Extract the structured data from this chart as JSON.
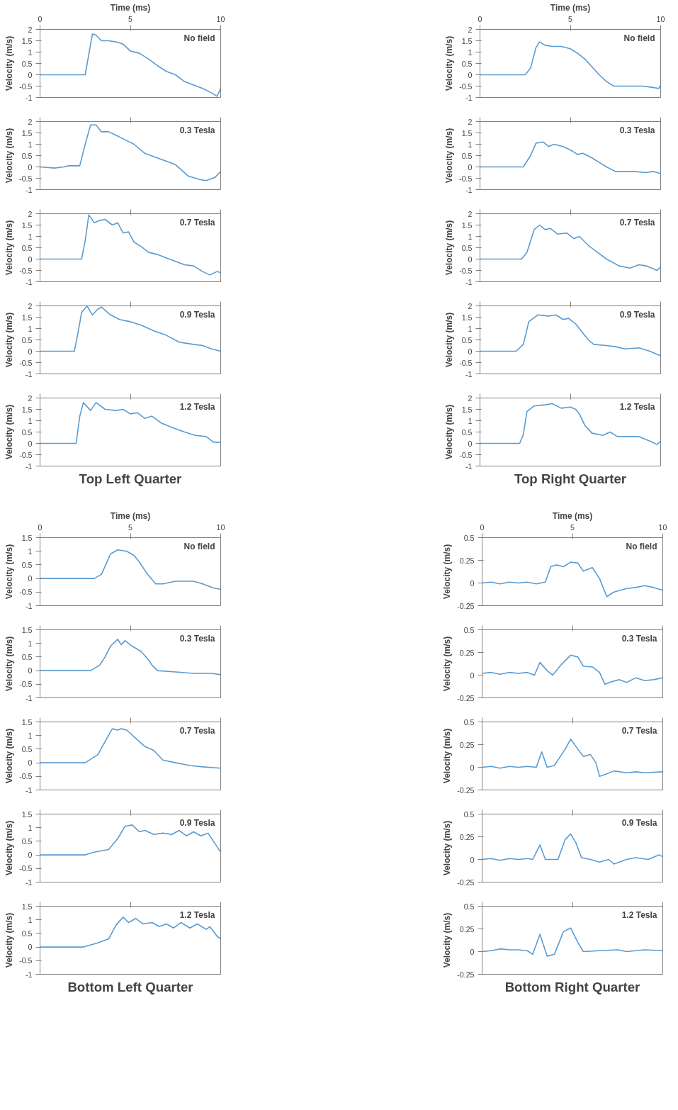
{
  "chart_data": [
    {
      "type": "line",
      "xlabel": "Time (ms)",
      "ylabel": "Velocity (m/s)",
      "annotations": [
        "No field"
      ],
      "xlim": [
        0,
        10
      ],
      "xticks": [
        0,
        5,
        10
      ],
      "ylim": [
        -1,
        2
      ],
      "yticks": [
        -1,
        -0.5,
        0,
        0.5,
        1,
        1.5,
        2
      ],
      "color": "#5a9bd0",
      "x": [
        0,
        2.5,
        2.7,
        2.9,
        3.1,
        3.4,
        3.8,
        4.2,
        4.6,
        5.0,
        5.5,
        6.0,
        6.5,
        7.0,
        7.5,
        8.0,
        8.5,
        9.0,
        9.5,
        9.8,
        10
      ],
      "values": [
        0,
        0,
        0.9,
        1.8,
        1.75,
        1.5,
        1.5,
        1.45,
        1.35,
        1.05,
        0.95,
        0.7,
        0.4,
        0.15,
        0,
        -0.3,
        -0.45,
        -0.6,
        -0.8,
        -0.95,
        -0.6
      ]
    },
    {
      "type": "line",
      "ylabel": "Velocity (m/s)",
      "annotations": [
        "0.3 Tesla"
      ],
      "tick_labels": "y",
      "xlim": [
        0,
        10
      ],
      "xticks": [
        0,
        5,
        10
      ],
      "ylim": [
        -1,
        2
      ],
      "yticks": [
        -1,
        -0.5,
        0,
        0.5,
        1,
        1.5,
        2
      ],
      "color": "#5a9bd0",
      "x": [
        0,
        0.8,
        1.3,
        1.6,
        2.2,
        2.5,
        2.8,
        3.1,
        3.4,
        3.8,
        4.2,
        4.7,
        5.2,
        5.8,
        6.3,
        7.0,
        7.5,
        8.2,
        8.8,
        9.2,
        9.7,
        10
      ],
      "values": [
        0,
        -0.05,
        0,
        0.05,
        0.05,
        1.0,
        1.85,
        1.85,
        1.55,
        1.55,
        1.4,
        1.2,
        1.0,
        0.6,
        0.45,
        0.25,
        0.1,
        -0.4,
        -0.55,
        -0.6,
        -0.45,
        -0.2
      ]
    },
    {
      "type": "line",
      "ylabel": "Velocity (m/s)",
      "annotations": [
        "0.7 Tesla"
      ],
      "tick_labels": "y",
      "xlim": [
        0,
        10
      ],
      "xticks": [
        0,
        5,
        10
      ],
      "ylim": [
        -1,
        2
      ],
      "yticks": [
        -1,
        -0.5,
        0,
        0.5,
        1,
        1.5,
        2
      ],
      "color": "#5a9bd0",
      "x": [
        0,
        2.3,
        2.5,
        2.7,
        3.0,
        3.3,
        3.6,
        4.0,
        4.3,
        4.6,
        4.9,
        5.2,
        5.6,
        6.0,
        6.5,
        7.0,
        7.5,
        8.0,
        8.5,
        9.0,
        9.4,
        9.8,
        10
      ],
      "values": [
        0,
        0,
        0.8,
        1.95,
        1.6,
        1.7,
        1.75,
        1.5,
        1.6,
        1.15,
        1.2,
        0.75,
        0.55,
        0.3,
        0.2,
        0.05,
        -0.1,
        -0.25,
        -0.3,
        -0.55,
        -0.7,
        -0.55,
        -0.6
      ]
    },
    {
      "type": "line",
      "ylabel": "Velocity (m/s)",
      "annotations": [
        "0.9 Tesla"
      ],
      "tick_labels": "y",
      "xlim": [
        0,
        10
      ],
      "xticks": [
        0,
        5,
        10
      ],
      "ylim": [
        -1,
        2
      ],
      "yticks": [
        -1,
        -0.5,
        0,
        0.5,
        1,
        1.5,
        2
      ],
      "color": "#5a9bd0",
      "x": [
        0,
        1.9,
        2.1,
        2.3,
        2.6,
        2.9,
        3.2,
        3.4,
        3.9,
        4.4,
        5.0,
        5.6,
        6.3,
        7.0,
        7.7,
        8.5,
        9.0,
        9.5,
        10
      ],
      "values": [
        0,
        0,
        0.8,
        1.7,
        2.0,
        1.6,
        1.85,
        1.95,
        1.6,
        1.4,
        1.3,
        1.15,
        0.9,
        0.7,
        0.4,
        0.3,
        0.25,
        0.1,
        0
      ]
    },
    {
      "type": "line",
      "ylabel": "Velocity (m/s)",
      "title": "Top Left Quarter",
      "annotations": [
        "1.2 Tesla"
      ],
      "tick_labels": "y",
      "xlim": [
        0,
        10
      ],
      "xticks": [
        0,
        5,
        10
      ],
      "ylim": [
        -1,
        2
      ],
      "yticks": [
        -1,
        -0.5,
        0,
        0.5,
        1,
        1.5,
        2
      ],
      "color": "#5a9bd0",
      "x": [
        0,
        2.0,
        2.2,
        2.4,
        2.8,
        3.1,
        3.6,
        4.2,
        4.6,
        5.0,
        5.4,
        5.8,
        6.2,
        6.7,
        7.3,
        8.0,
        8.6,
        9.2,
        9.6,
        10
      ],
      "values": [
        0,
        0,
        1.2,
        1.8,
        1.45,
        1.8,
        1.5,
        1.45,
        1.5,
        1.3,
        1.35,
        1.1,
        1.2,
        0.9,
        0.7,
        0.5,
        0.35,
        0.3,
        0.05,
        0.05
      ]
    },
    {
      "type": "line",
      "xlabel": "Time (ms)",
      "ylabel": "Velocity (m/s)",
      "annotations": [
        "No field"
      ],
      "xlim": [
        0,
        10
      ],
      "xticks": [
        0,
        5,
        10
      ],
      "ylim": [
        -1,
        2
      ],
      "yticks": [
        -1,
        -0.5,
        0,
        0.5,
        1,
        1.5,
        2
      ],
      "color": "#5a9bd0",
      "x": [
        0,
        2.5,
        2.8,
        3.1,
        3.3,
        3.6,
        4.0,
        4.5,
        5.0,
        5.4,
        5.8,
        6.2,
        6.6,
        7.0,
        7.4,
        8.0,
        9.0,
        9.5,
        9.9,
        10
      ],
      "values": [
        0,
        0,
        0.3,
        1.2,
        1.45,
        1.3,
        1.25,
        1.25,
        1.15,
        0.95,
        0.7,
        0.35,
        0,
        -0.3,
        -0.5,
        -0.5,
        -0.5,
        -0.55,
        -0.6,
        -0.45
      ]
    },
    {
      "type": "line",
      "ylabel": "Velocity (m/s)",
      "annotations": [
        "0.3 Tesla"
      ],
      "tick_labels": "y",
      "xlim": [
        0,
        10
      ],
      "xticks": [
        0,
        5,
        10
      ],
      "ylim": [
        -1,
        2
      ],
      "yticks": [
        -1,
        -0.5,
        0,
        0.5,
        1,
        1.5,
        2
      ],
      "color": "#5a9bd0",
      "x": [
        0,
        2.4,
        2.8,
        3.1,
        3.5,
        3.8,
        4.1,
        4.6,
        5.0,
        5.4,
        5.7,
        6.2,
        6.6,
        7.0,
        7.5,
        8.5,
        9.2,
        9.6,
        10
      ],
      "values": [
        0,
        0,
        0.5,
        1.05,
        1.1,
        0.9,
        1.0,
        0.9,
        0.75,
        0.55,
        0.6,
        0.4,
        0.2,
        0.0,
        -0.2,
        -0.2,
        -0.25,
        -0.2,
        -0.3
      ]
    },
    {
      "type": "line",
      "ylabel": "Velocity (m/s)",
      "annotations": [
        "0.7 Tesla"
      ],
      "tick_labels": "y",
      "xlim": [
        0,
        10
      ],
      "xticks": [
        0,
        5,
        10
      ],
      "ylim": [
        -1,
        2
      ],
      "yticks": [
        -1,
        -0.5,
        0,
        0.5,
        1,
        1.5,
        2
      ],
      "color": "#5a9bd0",
      "x": [
        0,
        2.3,
        2.6,
        3.0,
        3.3,
        3.6,
        3.9,
        4.3,
        4.8,
        5.2,
        5.5,
        6.0,
        6.5,
        7.0,
        7.7,
        8.3,
        8.8,
        9.2,
        9.8,
        10
      ],
      "values": [
        0,
        0,
        0.3,
        1.3,
        1.5,
        1.3,
        1.35,
        1.1,
        1.15,
        0.9,
        1.0,
        0.6,
        0.3,
        0,
        -0.3,
        -0.4,
        -0.25,
        -0.3,
        -0.5,
        -0.35
      ]
    },
    {
      "type": "line",
      "ylabel": "Velocity (m/s)",
      "annotations": [
        "0.9 Tesla"
      ],
      "tick_labels": "y",
      "xlim": [
        0,
        10
      ],
      "xticks": [
        0,
        5,
        10
      ],
      "ylim": [
        -1,
        2
      ],
      "yticks": [
        -1,
        -0.5,
        0,
        0.5,
        1,
        1.5,
        2
      ],
      "color": "#5a9bd0",
      "x": [
        0,
        2.0,
        2.4,
        2.7,
        3.2,
        3.8,
        4.2,
        4.6,
        4.9,
        5.3,
        5.7,
        6.0,
        6.3,
        7.0,
        7.5,
        8.0,
        8.8,
        9.4,
        10
      ],
      "values": [
        0,
        0,
        0.3,
        1.3,
        1.6,
        1.55,
        1.6,
        1.4,
        1.45,
        1.2,
        0.8,
        0.5,
        0.3,
        0.25,
        0.2,
        0.1,
        0.15,
        0,
        -0.2
      ]
    },
    {
      "type": "line",
      "ylabel": "Velocity (m/s)",
      "title": "Top Right Quarter",
      "annotations": [
        "1.2 Tesla"
      ],
      "tick_labels": "y",
      "xlim": [
        0,
        10
      ],
      "xticks": [
        0,
        5,
        10
      ],
      "ylim": [
        -1,
        2
      ],
      "yticks": [
        -1,
        -0.5,
        0,
        0.5,
        1,
        1.5,
        2
      ],
      "color": "#5a9bd0",
      "x": [
        0,
        2.2,
        2.4,
        2.6,
        3.0,
        3.6,
        4.0,
        4.5,
        5.0,
        5.3,
        5.5,
        5.8,
        6.2,
        6.8,
        7.2,
        7.6,
        8.8,
        9.4,
        9.8,
        10
      ],
      "values": [
        0,
        0,
        0.4,
        1.4,
        1.65,
        1.7,
        1.75,
        1.55,
        1.6,
        1.5,
        1.3,
        0.8,
        0.45,
        0.35,
        0.5,
        0.3,
        0.3,
        0.1,
        -0.05,
        0.1
      ]
    },
    {
      "type": "line",
      "xlabel": "Time (ms)",
      "ylabel": "Velocity (m/s)",
      "annotations": [
        "No field"
      ],
      "xlim": [
        0,
        10
      ],
      "xticks": [
        0,
        5,
        10
      ],
      "ylim": [
        -1,
        1.5
      ],
      "yticks": [
        -1,
        -0.5,
        0,
        0.5,
        1,
        1.5
      ],
      "color": "#5a9bd0",
      "x": [
        0,
        3.0,
        3.4,
        3.7,
        3.9,
        4.3,
        4.8,
        5.2,
        5.5,
        5.9,
        6.4,
        6.8,
        7.5,
        8.5,
        9.0,
        9.6,
        10
      ],
      "values": [
        0,
        0,
        0.15,
        0.6,
        0.9,
        1.05,
        1.0,
        0.85,
        0.6,
        0.2,
        -0.2,
        -0.2,
        -0.1,
        -0.1,
        -0.2,
        -0.35,
        -0.4
      ]
    },
    {
      "type": "line",
      "ylabel": "Velocity (m/s)",
      "annotations": [
        "0.3 Tesla"
      ],
      "tick_labels": "y",
      "xlim": [
        0,
        10
      ],
      "xticks": [
        0,
        5,
        10
      ],
      "ylim": [
        -1,
        1.5
      ],
      "yticks": [
        -1,
        -0.5,
        0,
        0.5,
        1,
        1.5
      ],
      "color": "#5a9bd0",
      "x": [
        0,
        2.8,
        3.3,
        3.6,
        3.9,
        4.3,
        4.5,
        4.7,
        4.9,
        5.1,
        5.6,
        6.0,
        6.2,
        6.5,
        7.5,
        8.5,
        9.5,
        10
      ],
      "values": [
        0,
        0,
        0.2,
        0.5,
        0.9,
        1.15,
        0.95,
        1.1,
        1.0,
        0.9,
        0.7,
        0.4,
        0.2,
        0,
        -0.05,
        -0.1,
        -0.1,
        -0.15
      ]
    },
    {
      "type": "line",
      "ylabel": "Velocity (m/s)",
      "annotations": [
        "0.7 Tesla"
      ],
      "tick_labels": "y",
      "xlim": [
        0,
        10
      ],
      "xticks": [
        0,
        5,
        10
      ],
      "ylim": [
        -1,
        1.5
      ],
      "yticks": [
        -1,
        -0.5,
        0,
        0.5,
        1,
        1.5
      ],
      "color": "#5a9bd0",
      "x": [
        0,
        2.5,
        3.2,
        3.7,
        4.0,
        4.3,
        4.5,
        4.8,
        5.3,
        5.8,
        6.3,
        6.8,
        7.5,
        8.3,
        9.0,
        10
      ],
      "values": [
        0,
        0,
        0.3,
        0.9,
        1.25,
        1.2,
        1.25,
        1.2,
        0.9,
        0.6,
        0.45,
        0.1,
        0,
        -0.1,
        -0.15,
        -0.2
      ]
    },
    {
      "type": "line",
      "ylabel": "Velocity (m/s)",
      "annotations": [
        "0.9 Tesla"
      ],
      "tick_labels": "y",
      "xlim": [
        0,
        10
      ],
      "xticks": [
        0,
        5,
        10
      ],
      "ylim": [
        -1,
        1.5
      ],
      "yticks": [
        -1,
        -0.5,
        0,
        0.5,
        1,
        1.5
      ],
      "color": "#5a9bd0",
      "x": [
        0,
        2.5,
        3.0,
        3.8,
        4.3,
        4.7,
        5.1,
        5.5,
        5.8,
        6.3,
        6.8,
        7.3,
        7.7,
        8.1,
        8.5,
        8.9,
        9.3,
        9.6,
        10
      ],
      "values": [
        0,
        0,
        0.1,
        0.2,
        0.6,
        1.05,
        1.1,
        0.85,
        0.9,
        0.75,
        0.8,
        0.75,
        0.9,
        0.7,
        0.85,
        0.7,
        0.8,
        0.5,
        0.1
      ]
    },
    {
      "type": "line",
      "ylabel": "Velocity (m/s)",
      "title": "Bottom Left Quarter",
      "annotations": [
        "1.2 Tesla"
      ],
      "tick_labels": "y",
      "xlim": [
        0,
        10
      ],
      "xticks": [
        0,
        5,
        10
      ],
      "ylim": [
        -1,
        1.5
      ],
      "yticks": [
        -1,
        -0.5,
        0,
        0.5,
        1,
        1.5
      ],
      "color": "#5a9bd0",
      "x": [
        0,
        2.4,
        3.2,
        3.8,
        4.2,
        4.6,
        4.9,
        5.3,
        5.7,
        6.2,
        6.6,
        7.0,
        7.4,
        7.8,
        8.3,
        8.7,
        9.2,
        9.4,
        9.8,
        10
      ],
      "values": [
        0,
        0,
        0.15,
        0.3,
        0.8,
        1.1,
        0.9,
        1.05,
        0.85,
        0.9,
        0.75,
        0.85,
        0.7,
        0.9,
        0.7,
        0.85,
        0.65,
        0.75,
        0.4,
        0.3
      ]
    },
    {
      "type": "line",
      "xlabel": "Time (ms)",
      "ylabel": "Velocity (m/s)",
      "annotations": [
        "No field"
      ],
      "xlim": [
        0,
        10
      ],
      "xticks": [
        0,
        5,
        10
      ],
      "ylim": [
        -0.25,
        0.5
      ],
      "yticks": [
        -0.25,
        0,
        0.25,
        0.5
      ],
      "color": "#5a9bd0",
      "x": [
        0,
        0.5,
        1,
        1.5,
        2,
        2.5,
        3,
        3.5,
        3.8,
        4.1,
        4.5,
        4.9,
        5.3,
        5.6,
        6.1,
        6.5,
        6.9,
        7.3,
        8.0,
        8.5,
        9.0,
        9.5,
        10
      ],
      "values": [
        0,
        0.01,
        -0.01,
        0.01,
        0,
        0.01,
        -0.01,
        0.01,
        0.18,
        0.2,
        0.18,
        0.23,
        0.22,
        0.13,
        0.17,
        0.05,
        -0.15,
        -0.1,
        -0.06,
        -0.05,
        -0.03,
        -0.05,
        -0.08
      ]
    },
    {
      "type": "line",
      "ylabel": "Velocity (m/s)",
      "annotations": [
        "0.3 Tesla"
      ],
      "tick_labels": "y",
      "xlim": [
        0,
        10
      ],
      "xticks": [
        0,
        5,
        10
      ],
      "ylim": [
        -0.25,
        0.5
      ],
      "yticks": [
        -0.25,
        0,
        0.25,
        0.5
      ],
      "color": "#5a9bd0",
      "x": [
        0,
        0.5,
        1,
        1.5,
        2,
        2.5,
        2.9,
        3.2,
        3.6,
        3.9,
        4.4,
        4.9,
        5.3,
        5.6,
        6.1,
        6.5,
        6.8,
        7.2,
        7.6,
        8.0,
        8.5,
        9.0,
        9.5,
        10
      ],
      "values": [
        0.02,
        0.03,
        0.01,
        0.03,
        0.02,
        0.03,
        0,
        0.14,
        0.05,
        0,
        0.12,
        0.22,
        0.2,
        0.1,
        0.09,
        0.03,
        -0.1,
        -0.07,
        -0.05,
        -0.08,
        -0.03,
        -0.06,
        -0.05,
        -0.03
      ]
    },
    {
      "type": "line",
      "ylabel": "Velocity (m/s)",
      "annotations": [
        "0.7 Tesla"
      ],
      "tick_labels": "y",
      "xlim": [
        0,
        10
      ],
      "xticks": [
        0,
        5,
        10
      ],
      "ylim": [
        -0.25,
        0.5
      ],
      "yticks": [
        -0.25,
        0,
        0.25,
        0.5
      ],
      "color": "#5a9bd0",
      "x": [
        0,
        0.5,
        1,
        1.5,
        2,
        2.5,
        3.0,
        3.3,
        3.6,
        4.0,
        4.6,
        4.9,
        5.3,
        5.6,
        6.0,
        6.3,
        6.5,
        6.8,
        7.3,
        8.0,
        8.5,
        9.0,
        10
      ],
      "values": [
        0,
        0.01,
        -0.01,
        0.01,
        0,
        0.01,
        0,
        0.17,
        0,
        0.02,
        0.2,
        0.31,
        0.2,
        0.12,
        0.14,
        0.05,
        -0.1,
        -0.08,
        -0.04,
        -0.06,
        -0.05,
        -0.06,
        -0.05
      ]
    },
    {
      "type": "line",
      "ylabel": "Velocity (m/s)",
      "annotations": [
        "0.9 Tesla"
      ],
      "tick_labels": "y",
      "xlim": [
        0,
        10
      ],
      "xticks": [
        0,
        5,
        10
      ],
      "ylim": [
        -0.25,
        0.5
      ],
      "yticks": [
        -0.25,
        0,
        0.25,
        0.5
      ],
      "color": "#5a9bd0",
      "x": [
        0,
        0.5,
        1,
        1.5,
        2,
        2.5,
        2.8,
        3.2,
        3.5,
        4.2,
        4.6,
        4.9,
        5.2,
        5.5,
        6.0,
        6.5,
        7.0,
        7.3,
        8.0,
        8.5,
        9.2,
        9.8,
        10
      ],
      "values": [
        0,
        0.01,
        -0.01,
        0.01,
        0,
        0.01,
        0,
        0.16,
        0,
        0,
        0.22,
        0.28,
        0.18,
        0.02,
        0,
        -0.03,
        0,
        -0.05,
        0,
        0.02,
        0,
        0.05,
        0.03
      ]
    },
    {
      "type": "line",
      "ylabel": "Velocity (m/s)",
      "title": "Bottom Right Quarter",
      "annotations": [
        "1.2 Tesla"
      ],
      "tick_labels": "y",
      "xlim": [
        0,
        10
      ],
      "xticks": [
        0,
        5,
        10
      ],
      "ylim": [
        -0.25,
        0.5
      ],
      "yticks": [
        -0.25,
        0,
        0.25,
        0.5
      ],
      "color": "#5a9bd0",
      "x": [
        0,
        0.5,
        1,
        1.5,
        2,
        2.5,
        2.8,
        3.2,
        3.6,
        4.0,
        4.5,
        4.9,
        5.3,
        5.6,
        6.5,
        7.5,
        8.0,
        9.0,
        10
      ],
      "values": [
        0,
        0.01,
        0.03,
        0.02,
        0.02,
        0.01,
        -0.03,
        0.19,
        -0.05,
        -0.03,
        0.22,
        0.26,
        0.1,
        0,
        0.01,
        0.02,
        0,
        0.02,
        0.01
      ]
    }
  ]
}
